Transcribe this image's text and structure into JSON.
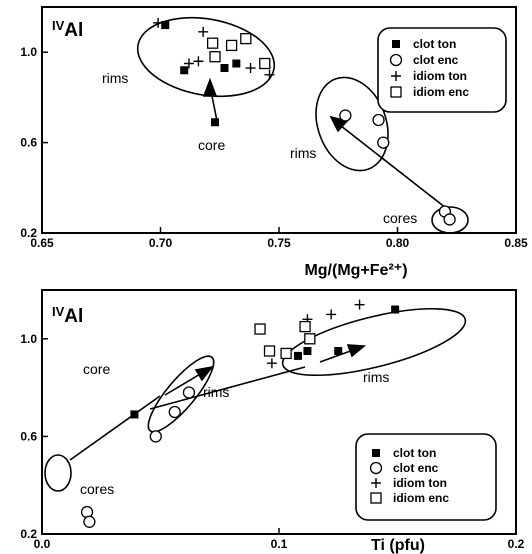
{
  "chart_data": [
    {
      "type": "scatter",
      "panel": "top",
      "xlabel": "Mg/(Mg+Fe²⁺)",
      "ylabel_main": "Al",
      "ylabel_sup": "IV",
      "xlim": [
        0.65,
        0.85
      ],
      "ylim": [
        0.2,
        1.2
      ],
      "xticks": [
        "0.65",
        "0.70",
        "0.75",
        "0.80",
        "0.85"
      ],
      "yticks": [
        "0.2",
        "0.6",
        "1.0"
      ],
      "ytick_values": [
        0.2,
        0.6,
        1.0
      ],
      "legend": {
        "placement": "top-right",
        "entries": [
          "clot ton",
          "clot enc",
          "idiom ton",
          "idiom enc"
        ]
      },
      "series": [
        {
          "name": "clot ton",
          "marker": "filled-square",
          "points": [
            [
              0.702,
              1.12
            ],
            [
              0.71,
              0.92
            ],
            [
              0.727,
              0.93
            ],
            [
              0.732,
              0.95
            ],
            [
              0.723,
              0.69
            ]
          ]
        },
        {
          "name": "clot enc",
          "marker": "open-circle",
          "points": [
            [
              0.778,
              0.72
            ],
            [
              0.792,
              0.7
            ],
            [
              0.794,
              0.6
            ],
            [
              0.82,
              0.295
            ],
            [
              0.822,
              0.26
            ]
          ]
        },
        {
          "name": "idiom ton",
          "marker": "plus",
          "points": [
            [
              0.699,
              1.13
            ],
            [
              0.712,
              0.95
            ],
            [
              0.716,
              0.96
            ],
            [
              0.718,
              1.09
            ],
            [
              0.738,
              0.93
            ],
            [
              0.746,
              0.9
            ]
          ]
        },
        {
          "name": "idiom enc",
          "marker": "open-square",
          "points": [
            [
              0.722,
              1.04
            ],
            [
              0.723,
              0.98
            ],
            [
              0.73,
              1.03
            ],
            [
              0.736,
              1.06
            ],
            [
              0.744,
              0.95
            ]
          ]
        }
      ],
      "annotations": [
        "rims",
        "core",
        "rims",
        "cores"
      ]
    },
    {
      "type": "scatter",
      "panel": "bottom",
      "xlabel": "Ti (pfu)",
      "ylabel_main": "Al",
      "ylabel_sup": "IV",
      "xlim": [
        0.0,
        0.2
      ],
      "ylim": [
        0.2,
        1.2
      ],
      "xticks": [
        "0.0",
        "0.1",
        "0.2"
      ],
      "yticks": [
        "0.2",
        "0.6",
        "1.0"
      ],
      "ytick_values": [
        0.2,
        0.6,
        1.0
      ],
      "legend": {
        "placement": "bottom-right",
        "entries": [
          "clot ton",
          "clot enc",
          "idiom ton",
          "idiom enc"
        ]
      },
      "series": [
        {
          "name": "clot ton",
          "marker": "filled-square",
          "points": [
            [
              0.039,
              0.69
            ],
            [
              0.108,
              0.93
            ],
            [
              0.112,
              0.95
            ],
            [
              0.125,
              0.95
            ],
            [
              0.149,
              1.12
            ]
          ]
        },
        {
          "name": "clot enc",
          "marker": "open-circle",
          "points": [
            [
              0.019,
              0.29
            ],
            [
              0.02,
              0.25
            ],
            [
              0.048,
              0.6
            ],
            [
              0.056,
              0.7
            ],
            [
              0.062,
              0.78
            ]
          ]
        },
        {
          "name": "idiom ton",
          "marker": "plus",
          "points": [
            [
              0.097,
              0.9
            ],
            [
              0.112,
              1.08
            ],
            [
              0.122,
              1.1
            ],
            [
              0.134,
              1.14
            ]
          ]
        },
        {
          "name": "idiom enc",
          "marker": "open-square",
          "points": [
            [
              0.092,
              1.04
            ],
            [
              0.096,
              0.95
            ],
            [
              0.103,
              0.94
            ],
            [
              0.111,
              1.05
            ],
            [
              0.113,
              1.0
            ]
          ]
        }
      ],
      "annotations": [
        "core",
        "rims",
        "rims",
        "cores"
      ]
    }
  ]
}
